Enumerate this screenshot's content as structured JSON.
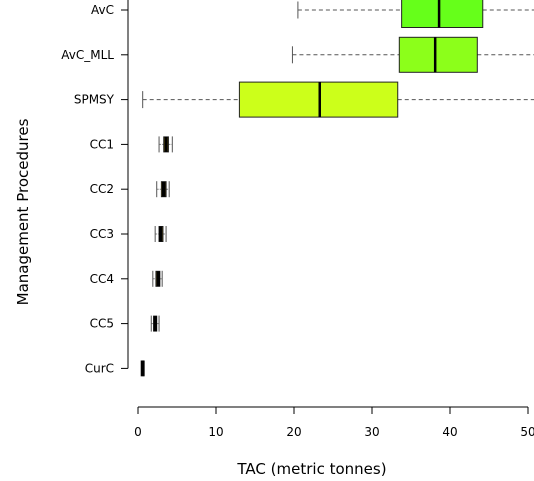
{
  "chart_data": {
    "type": "boxplot",
    "orientation": "horizontal",
    "xlabel": "TAC (metric tonnes)",
    "ylabel": "Management Procedures",
    "xlim": [
      0,
      50
    ],
    "x_ticks": [
      "0",
      "10",
      "20",
      "30",
      "40",
      "50"
    ],
    "grid": false,
    "categories": [
      "AvC",
      "AvC_MLL",
      "SPMSY",
      "CC1",
      "CC2",
      "CC3",
      "CC4",
      "CC5",
      "CurC"
    ],
    "boxes": [
      {
        "label": "AvC",
        "whisker_low": 20.5,
        "q1": 33.8,
        "median": 38.6,
        "q3": 44.2,
        "whisker_high": 52,
        "color": "#66ff1a"
      },
      {
        "label": "AvC_MLL",
        "whisker_low": 19.8,
        "q1": 33.5,
        "median": 38.1,
        "q3": 43.5,
        "whisker_high": 52,
        "color": "#8cff1a"
      },
      {
        "label": "SPMSY",
        "whisker_low": 0.6,
        "q1": 13.0,
        "median": 23.3,
        "q3": 33.3,
        "whisker_high": 52,
        "color": "#ccff1a"
      },
      {
        "label": "CC1",
        "whisker_low": 2.7,
        "q1": 3.3,
        "median": 3.6,
        "q3": 3.9,
        "whisker_high": 4.4,
        "color": "#f5d020"
      },
      {
        "label": "CC2",
        "whisker_low": 2.4,
        "q1": 3.0,
        "median": 3.3,
        "q3": 3.6,
        "whisker_high": 4.0,
        "color": "#f5d020"
      },
      {
        "label": "CC3",
        "whisker_low": 2.2,
        "q1": 2.7,
        "median": 2.9,
        "q3": 3.2,
        "whisker_high": 3.6,
        "color": "#f5d020"
      },
      {
        "label": "CC4",
        "whisker_low": 1.9,
        "q1": 2.3,
        "median": 2.6,
        "q3": 2.8,
        "whisker_high": 3.1,
        "color": "#f5d020"
      },
      {
        "label": "CC5",
        "whisker_low": 1.7,
        "q1": 2.0,
        "median": 2.2,
        "q3": 2.4,
        "whisker_high": 2.7,
        "color": "#f5d020"
      },
      {
        "label": "CurC",
        "whisker_low": 0.4,
        "q1": 0.5,
        "median": 0.6,
        "q3": 0.7,
        "whisker_high": 0.8,
        "color": "#f5d020"
      }
    ]
  }
}
